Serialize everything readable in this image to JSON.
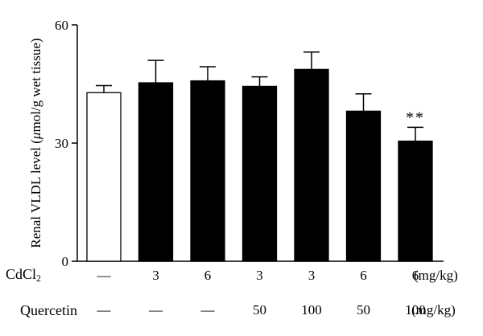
{
  "chart_data": {
    "type": "bar",
    "ylabel_prefix": "Renal VLDL level (",
    "ylabel_mu": "μ",
    "ylabel_suffix": "mol/g wet tissue)",
    "ylim": [
      0,
      60
    ],
    "yticks": [
      "0",
      "30",
      "60"
    ],
    "groups": [
      {
        "cdcl2": "—",
        "quercetin": "—",
        "value": 42.8,
        "error": 1.8,
        "fill": "white",
        "annotation": ""
      },
      {
        "cdcl2": "3",
        "quercetin": "—",
        "value": 45.3,
        "error": 5.7,
        "fill": "black",
        "annotation": ""
      },
      {
        "cdcl2": "6",
        "quercetin": "—",
        "value": 45.8,
        "error": 3.6,
        "fill": "black",
        "annotation": ""
      },
      {
        "cdcl2": "3",
        "quercetin": "50",
        "value": 44.4,
        "error": 2.4,
        "fill": "black",
        "annotation": ""
      },
      {
        "cdcl2": "3",
        "quercetin": "100",
        "value": 48.7,
        "error": 4.4,
        "fill": "black",
        "annotation": ""
      },
      {
        "cdcl2": "6",
        "quercetin": "50",
        "value": 38.1,
        "error": 4.4,
        "fill": "black",
        "annotation": ""
      },
      {
        "cdcl2": "6",
        "quercetin": "100",
        "value": 30.5,
        "error": 3.5,
        "fill": "black",
        "annotation": "**"
      }
    ],
    "grid": false,
    "legend": "none"
  },
  "table": {
    "cdcl2_label_main": "CdCl",
    "cdcl2_label_sub": "2",
    "quercetin_label": "Quercetin",
    "unit_label": "(mg/kg)"
  },
  "colors": {
    "bar_fill": "#000000",
    "control_fill": "#ffffff",
    "axis": "#000000"
  }
}
